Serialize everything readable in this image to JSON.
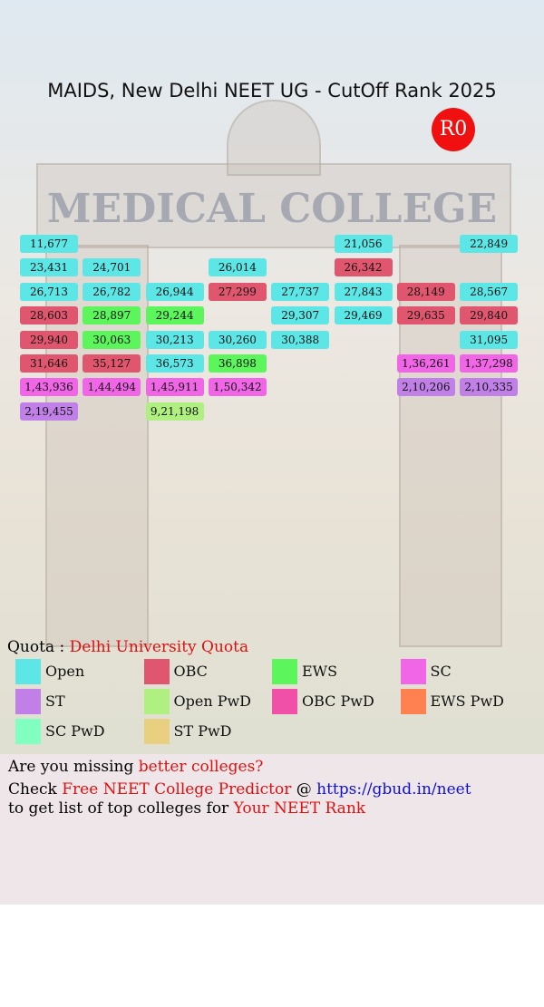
{
  "header": {
    "title": "MAIDS, New Delhi NEET UG - CutOff Rank 2025",
    "round": "R0"
  },
  "background_text": "MEDICAL COLLEGE",
  "columns": [
    [
      {
        "rank": "11,677",
        "color": "#5ce6e6"
      },
      {
        "rank": "23,431",
        "color": "#5ce6e6"
      },
      {
        "rank": "26,713",
        "color": "#5ce6e6"
      },
      {
        "rank": "28,603",
        "color": "#e0566e"
      },
      {
        "rank": "29,940",
        "color": "#e0566e"
      },
      {
        "rank": "31,646",
        "color": "#e0566e"
      },
      {
        "rank": "1,43,936",
        "color": "#f066e6"
      },
      {
        "rank": "2,19,455",
        "color": "#c080e8"
      }
    ],
    [
      null,
      {
        "rank": "24,701",
        "color": "#5ce6e6"
      },
      {
        "rank": "26,782",
        "color": "#5ce6e6"
      },
      {
        "rank": "28,897",
        "color": "#5cf55c"
      },
      {
        "rank": "30,063",
        "color": "#5cf55c"
      },
      {
        "rank": "35,127",
        "color": "#e0566e"
      },
      {
        "rank": "1,44,494",
        "color": "#f066e6"
      },
      null
    ],
    [
      null,
      null,
      {
        "rank": "26,944",
        "color": "#5ce6e6"
      },
      {
        "rank": "29,244",
        "color": "#5cf55c"
      },
      {
        "rank": "30,213",
        "color": "#5ce6e6"
      },
      {
        "rank": "36,573",
        "color": "#5ce6e6"
      },
      {
        "rank": "1,45,911",
        "color": "#f066e6"
      },
      {
        "rank": "9,21,198",
        "color": "#b0f080"
      }
    ],
    [
      null,
      {
        "rank": "26,014",
        "color": "#5ce6e6"
      },
      {
        "rank": "27,299",
        "color": "#e0566e"
      },
      null,
      {
        "rank": "30,260",
        "color": "#5ce6e6"
      },
      {
        "rank": "36,898",
        "color": "#5cf55c"
      },
      {
        "rank": "1,50,342",
        "color": "#f066e6"
      },
      null
    ],
    [
      null,
      null,
      {
        "rank": "27,737",
        "color": "#5ce6e6"
      },
      {
        "rank": "29,307",
        "color": "#5ce6e6"
      },
      {
        "rank": "30,388",
        "color": "#5ce6e6"
      },
      null,
      null,
      null
    ],
    [
      {
        "rank": "21,056",
        "color": "#5ce6e6"
      },
      {
        "rank": "26,342",
        "color": "#e0566e"
      },
      {
        "rank": "27,843",
        "color": "#5ce6e6"
      },
      {
        "rank": "29,469",
        "color": "#5ce6e6"
      },
      null,
      null,
      null,
      null
    ],
    [
      null,
      null,
      {
        "rank": "28,149",
        "color": "#e0566e"
      },
      {
        "rank": "29,635",
        "color": "#e0566e"
      },
      null,
      {
        "rank": "1,36,261",
        "color": "#f066e6"
      },
      {
        "rank": "2,10,206",
        "color": "#c080e8"
      },
      null
    ],
    [
      {
        "rank": "22,849",
        "color": "#5ce6e6"
      },
      null,
      {
        "rank": "28,567",
        "color": "#5ce6e6"
      },
      {
        "rank": "29,840",
        "color": "#e0566e"
      },
      {
        "rank": "31,095",
        "color": "#5ce6e6"
      },
      {
        "rank": "1,37,298",
        "color": "#f066e6"
      },
      {
        "rank": "2,10,335",
        "color": "#c080e8"
      },
      null
    ]
  ],
  "quota": {
    "label": "Quota : ",
    "value": "Delhi University Quota"
  },
  "legend": [
    {
      "name": "Open",
      "color": "#5ce6e6"
    },
    {
      "name": "OBC",
      "color": "#e0566e"
    },
    {
      "name": "EWS",
      "color": "#5cf55c"
    },
    {
      "name": "SC",
      "color": "#f066e6"
    },
    {
      "name": "ST",
      "color": "#c080e8"
    },
    {
      "name": "Open PwD",
      "color": "#b0f080"
    },
    {
      "name": "OBC PwD",
      "color": "#f050a8"
    },
    {
      "name": "EWS PwD",
      "color": "#ff8050"
    },
    {
      "name": "SC PwD",
      "color": "#80ffc0"
    },
    {
      "name": "ST PwD",
      "color": "#e8d080"
    }
  ],
  "footer": {
    "lines": [
      [
        {
          "text": "Are you missing ",
          "color": "#000000"
        },
        {
          "text": "better colleges?",
          "color": "#e01010"
        }
      ],
      [
        {
          "text": "Check ",
          "color": "#000000"
        },
        {
          "text": "Free NEET College Predictor",
          "color": "#e01010"
        },
        {
          "text": " @ ",
          "color": "#000000"
        },
        {
          "text": "https://gbud.in/neet",
          "color": "#1010d0"
        }
      ],
      [
        {
          "text": "to get list of top colleges for ",
          "color": "#000000"
        },
        {
          "text": "Your NEET Rank",
          "color": "#e01010"
        }
      ]
    ]
  }
}
